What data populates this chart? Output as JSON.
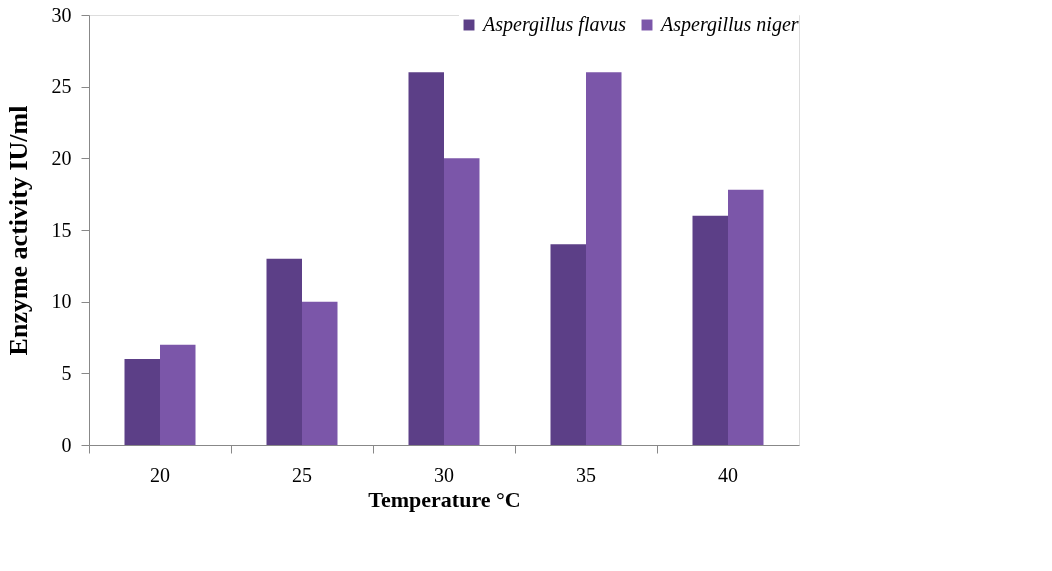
{
  "chart_data": {
    "type": "bar",
    "xlabel": "Temperature °C",
    "ylabel": "Enzyme activity IU/ml",
    "categories": [
      "20",
      "25",
      "30",
      "35",
      "40"
    ],
    "series": [
      {
        "name": "Aspergillus flavus",
        "color": "#5c3f87",
        "values": [
          6,
          13,
          26,
          14,
          16
        ]
      },
      {
        "name": "Aspergillus niger",
        "color": "#7b56a9",
        "values": [
          7,
          10,
          20,
          26,
          17.8
        ]
      }
    ],
    "ylim": [
      0,
      30
    ],
    "yticks": [
      0,
      5,
      10,
      15,
      20,
      25,
      30
    ],
    "grid": false,
    "legend": "top right"
  }
}
